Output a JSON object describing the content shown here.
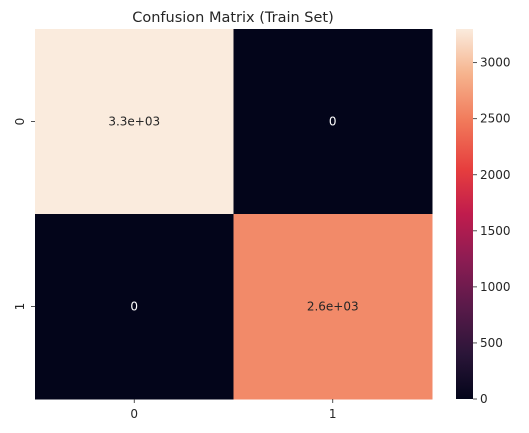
{
  "chart_data": {
    "type": "heatmap",
    "title": "Confusion Matrix (Train Set)",
    "xlabel": "",
    "ylabel": "",
    "x_categories": [
      "0",
      "1"
    ],
    "y_categories": [
      "0",
      "1"
    ],
    "values": [
      [
        3300,
        0
      ],
      [
        0,
        2600
      ]
    ],
    "annotations": [
      [
        "3.3e+03",
        "0"
      ],
      [
        "0",
        "2.6e+03"
      ]
    ],
    "colorbar": {
      "range": [
        0,
        3300
      ],
      "ticks": [
        0,
        500,
        1000,
        1500,
        2000,
        2500,
        3000
      ],
      "tick_labels": [
        "0",
        "500",
        "1000",
        "1500",
        "2000",
        "2500",
        "3000"
      ]
    },
    "colormap": "rocket",
    "grid": false,
    "legend": "colorbar-right"
  }
}
